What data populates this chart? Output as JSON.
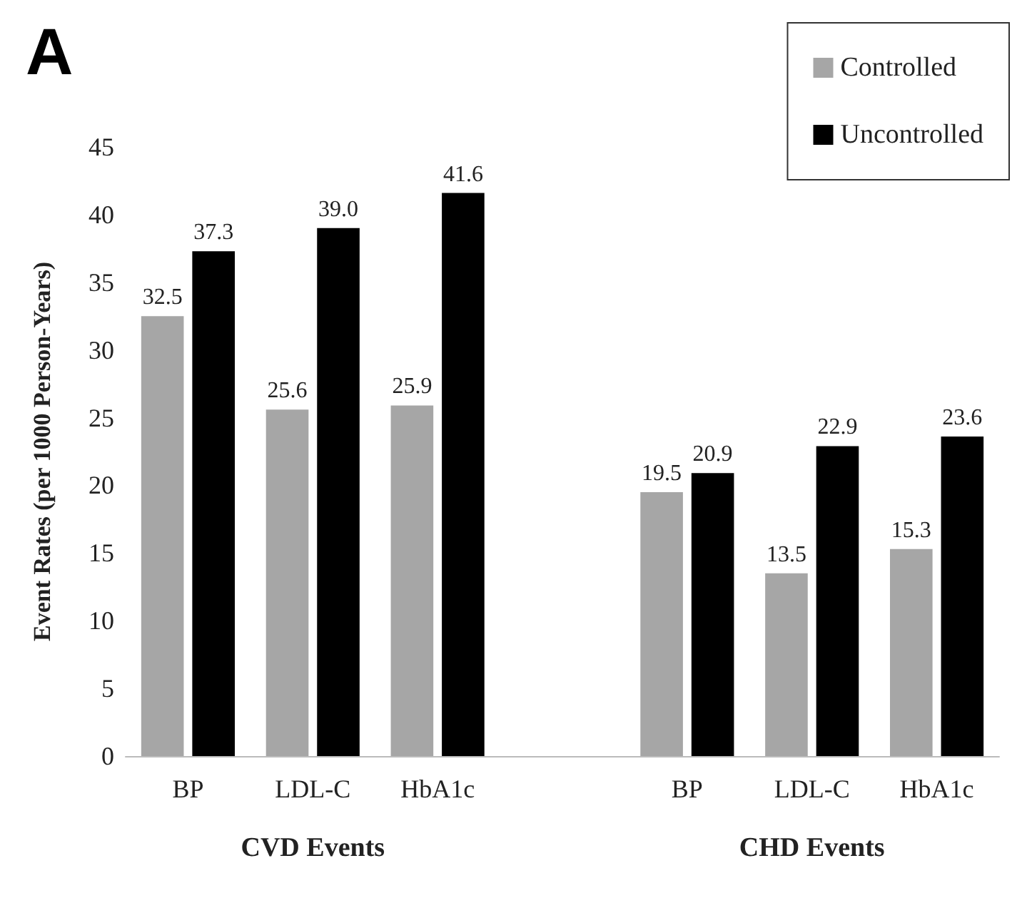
{
  "chart_data": {
    "type": "bar",
    "title": "A",
    "ylabel": "Event Rates (per 1000 Person-Years)",
    "categories": [
      "BP",
      "LDL-C",
      "HbA1c",
      null,
      "BP",
      "LDL-C",
      "HbA1c"
    ],
    "series": [
      {
        "name": "Controlled",
        "color": "#a6a6a6",
        "values": [
          32.5,
          25.6,
          25.9,
          null,
          19.5,
          13.5,
          15.3
        ],
        "value_labels": [
          "32.5",
          "25.6",
          "25.9",
          null,
          "19.5",
          "13.5",
          "15.3"
        ]
      },
      {
        "name": "Uncontrolled",
        "color": "#000000",
        "values": [
          37.3,
          39.0,
          41.6,
          null,
          20.9,
          22.9,
          23.6
        ],
        "value_labels": [
          "37.3",
          "39.0",
          "41.6",
          null,
          "20.9",
          "22.9",
          "23.6"
        ]
      }
    ],
    "annotations": [
      "CVD Events",
      "CHD Events"
    ],
    "ylim": [
      0,
      45
    ],
    "yticks": [
      0,
      5,
      10,
      15,
      20,
      25,
      30,
      35,
      40,
      45
    ],
    "grid": false,
    "legend": "top right"
  }
}
